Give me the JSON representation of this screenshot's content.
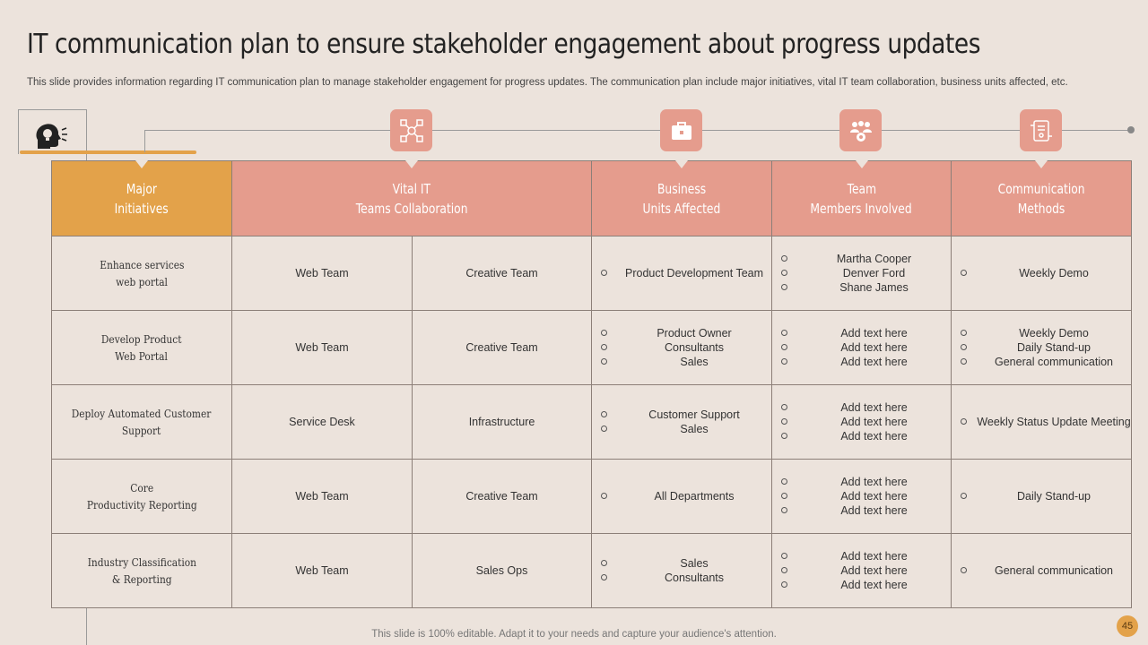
{
  "slide": {
    "title": "IT communication plan to ensure stakeholder engagement about progress updates",
    "subtitle": "This slide provides information regarding IT communication plan to manage stakeholder engagement for progress updates. The communication plan include major initiatives, vital IT team collaboration, business units affected, etc.",
    "footer": "This slide is 100% editable. Adapt it to your needs and capture your audience's attention.",
    "page_number": "45"
  },
  "icons": {
    "intro": "lightbulb-head-icon",
    "collaboration": "network-icon",
    "business": "briefcase-icon",
    "team": "team-gear-icon",
    "methods": "communication-device-icon"
  },
  "colors": {
    "background": "#ece3dc",
    "accent_orange": "#e3a24a",
    "accent_salmon": "#e59c8d",
    "cell_pink": "#ecbbb2",
    "cell_cream": "#f6ecdd"
  },
  "headers": {
    "major": [
      "Major",
      "Initiatives"
    ],
    "vital": [
      "Vital IT",
      "Teams Collaboration"
    ],
    "business": [
      "Business",
      "Units Affected"
    ],
    "team": [
      "Team",
      "Members Involved"
    ],
    "methods": [
      "Communication",
      "Methods"
    ]
  },
  "rows": [
    {
      "initiative": [
        "Enhance  services",
        "web portal"
      ],
      "team_a": "Web Team",
      "team_b": "Creative  Team",
      "business": [
        "Product Development Team"
      ],
      "members": [
        "Martha Cooper",
        "Denver  Ford",
        "Shane James"
      ],
      "methods": [
        "Weekly Demo"
      ]
    },
    {
      "initiative": [
        "Develop  Product",
        "Web Portal"
      ],
      "team_a": "Web Team",
      "team_b": "Creative  Team",
      "business": [
        "Product Owner",
        "Consultants",
        "Sales"
      ],
      "members": [
        "Add text here",
        "Add text here",
        "Add text here"
      ],
      "methods": [
        "Weekly Demo",
        "Daily Stand-up",
        "General  communication"
      ]
    },
    {
      "initiative": [
        "Deploy  Automated  Customer",
        "Support"
      ],
      "team_a": "Service Desk",
      "team_b": "Infrastructure",
      "business": [
        "Customer Support",
        "Sales"
      ],
      "members": [
        "Add text here",
        "Add text here",
        "Add text here"
      ],
      "methods": [
        "Weekly Status Update Meeting"
      ]
    },
    {
      "initiative": [
        "Core",
        "Productivity  Reporting"
      ],
      "team_a": "Web Team",
      "team_b": "Creative  Team",
      "business": [
        "All Departments"
      ],
      "members": [
        "Add text here",
        "Add text here",
        "Add text here"
      ],
      "methods": [
        "Daily Stand-up"
      ]
    },
    {
      "initiative": [
        "Industry  Classification",
        "& Reporting"
      ],
      "team_a": "Web Team",
      "team_b": "Sales Ops",
      "business": [
        "Sales",
        "Consultants"
      ],
      "members": [
        "Add text here",
        "Add text here",
        "Add text here"
      ],
      "methods": [
        "General  communication"
      ]
    }
  ]
}
